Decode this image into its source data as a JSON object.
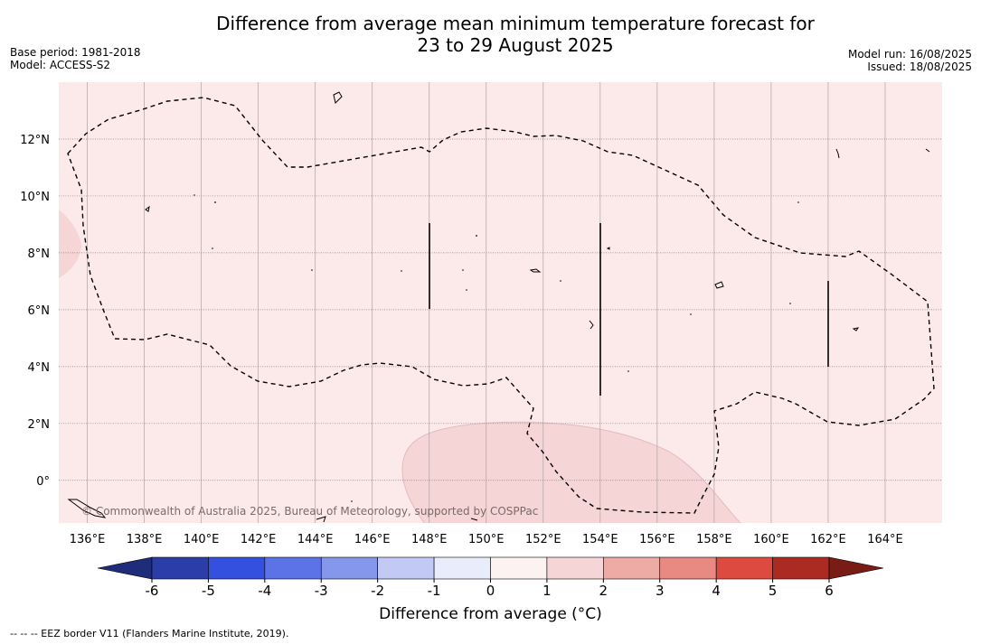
{
  "title_line1": "Difference from average mean minimum temperature forecast for",
  "title_line2": "23 to 29 August 2025",
  "meta_left": {
    "base_period": "Base period: 1981-2018",
    "model": "Model: ACCESS-S2"
  },
  "meta_right": {
    "model_run": "Model run: 16/08/2025",
    "issued": "Issued: 18/08/2025"
  },
  "map": {
    "lon_range": [
      135,
      166
    ],
    "lat_range": [
      -1.5,
      14
    ],
    "lon_ticks": [
      136,
      138,
      140,
      142,
      144,
      146,
      148,
      150,
      152,
      154,
      156,
      158,
      160,
      162,
      164
    ],
    "lat_ticks": [
      0,
      2,
      4,
      6,
      8,
      10,
      12
    ],
    "lon_tick_labels": [
      "136°E",
      "138°E",
      "140°E",
      "142°E",
      "144°E",
      "146°E",
      "148°E",
      "150°E",
      "152°E",
      "154°E",
      "156°E",
      "158°E",
      "160°E",
      "162°E",
      "164°E"
    ],
    "lat_tick_labels": [
      "0°",
      "2°N",
      "4°N",
      "6°N",
      "8°N",
      "10°N",
      "12°N"
    ],
    "background_anomaly": "0 to 1",
    "background_color": "#fceaea",
    "warm_patch_color": "#f5d5d5",
    "grid": true,
    "copyright": "© Commonwealth of Australia 2025, Bureau of Meteorology, supported by COSPPac"
  },
  "colorbar": {
    "title": "Difference from average (°C)",
    "ticks": [
      "-6",
      "-5",
      "-4",
      "-3",
      "-2",
      "-1",
      "0",
      "1",
      "2",
      "3",
      "4",
      "5",
      "6"
    ],
    "colors": [
      "#2a3da8",
      "#3450df",
      "#5b73e6",
      "#8497ea",
      "#c1c9f4",
      "#e9ecfb",
      "#fdf2f2",
      "#f5d5d5",
      "#eeaba5",
      "#e88a82",
      "#dd4a40",
      "#ab2a22"
    ],
    "under_color": "#1f2c7a",
    "over_color": "#7a1c16"
  },
  "footnote": "--  --  -- EEZ border V11 (Flanders Marine Institute, 2019)."
}
